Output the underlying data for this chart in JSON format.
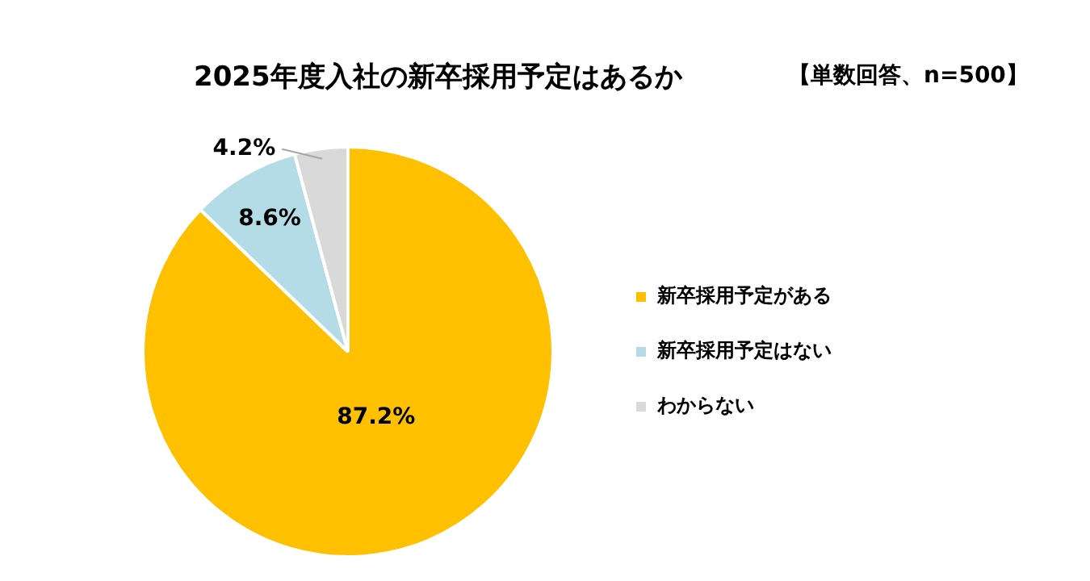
{
  "chart_data": {
    "type": "pie",
    "title": "2025年度入社の新卒採用予定はあるか",
    "subtitle": "【単数回答、n=500】",
    "categories": [
      "新卒採用予定がある",
      "新卒採用予定はない",
      "わからない"
    ],
    "values": [
      87.2,
      8.6,
      4.2
    ],
    "value_labels": [
      "87.2%",
      "8.6%",
      "4.2%"
    ],
    "colors": [
      "#ffc000",
      "#b4dce6",
      "#d9d9d9"
    ],
    "legend": "right"
  }
}
